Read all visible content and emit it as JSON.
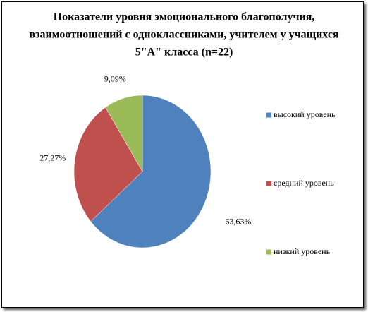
{
  "chart_data": {
    "type": "pie",
    "title": [
      "Показатели  уровня  эмоционального  благополучия,",
      "взаимоотношений  с одноклассниками,  учителем у учащихся",
      "5\"А\" класса (n=22)"
    ],
    "categories": [
      "высокий уровень",
      "средний уровень",
      "низкий уровень"
    ],
    "values": [
      63.63,
      27.27,
      9.09
    ],
    "value_labels": [
      "63,63%",
      "27,27%",
      "9,09%"
    ],
    "colors": [
      "#4f81bd",
      "#c0504d",
      "#9bbb59"
    ],
    "legend": "right"
  }
}
